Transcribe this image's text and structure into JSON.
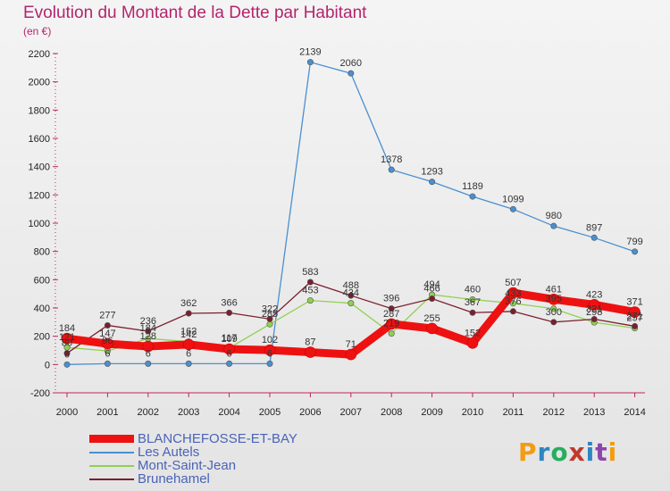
{
  "title": "Evolution du Montant de la Dette par Habitant",
  "subtitle": "(en €)",
  "brand": {
    "text": "Proxiti",
    "colors": [
      "#f39c12",
      "#2e86c1",
      "#27ae60",
      "#c0392b",
      "#2e86c1",
      "#8e44ad",
      "#f39c12"
    ]
  },
  "chart_data": {
    "type": "line",
    "x": [
      "2000",
      "2001",
      "2002",
      "2003",
      "2004",
      "2005",
      "2006",
      "2007",
      "2008",
      "2009",
      "2010",
      "2011",
      "2012",
      "2013",
      "2014"
    ],
    "ylim": [
      -200,
      2200
    ],
    "yticks": [
      -200,
      0,
      200,
      400,
      600,
      800,
      1000,
      1200,
      1400,
      1600,
      1800,
      2000,
      2200
    ],
    "grid": false,
    "legend_position": "bottom-left",
    "series": [
      {
        "name": "BLANCHEFOSSE-ET-BAY",
        "color": "#ee1111",
        "values": [
          184,
          147,
          128,
          142,
          109,
          102,
          87,
          71,
          287,
          255,
          152,
          507,
          461,
          423,
          371
        ]
      },
      {
        "name": "Les Autels",
        "color": "#4a8fd0",
        "values": [
          0,
          6,
          6,
          6,
          6,
          6,
          2139,
          2060,
          1378,
          1293,
          1189,
          1099,
          980,
          897,
          799
        ]
      },
      {
        "name": "Mont-Saint-Jean",
        "color": "#8fd14f",
        "values": [
          121,
          96,
          184,
          162,
          117,
          285,
          453,
          434,
          219,
          494,
          460,
          433,
          395,
          298,
          257
        ]
      },
      {
        "name": "Brunehamel",
        "color": "#7a1f2e",
        "values": [
          80,
          277,
          236,
          362,
          366,
          322,
          583,
          488,
          396,
          466,
          367,
          376,
          300,
          321,
          271
        ]
      }
    ]
  }
}
